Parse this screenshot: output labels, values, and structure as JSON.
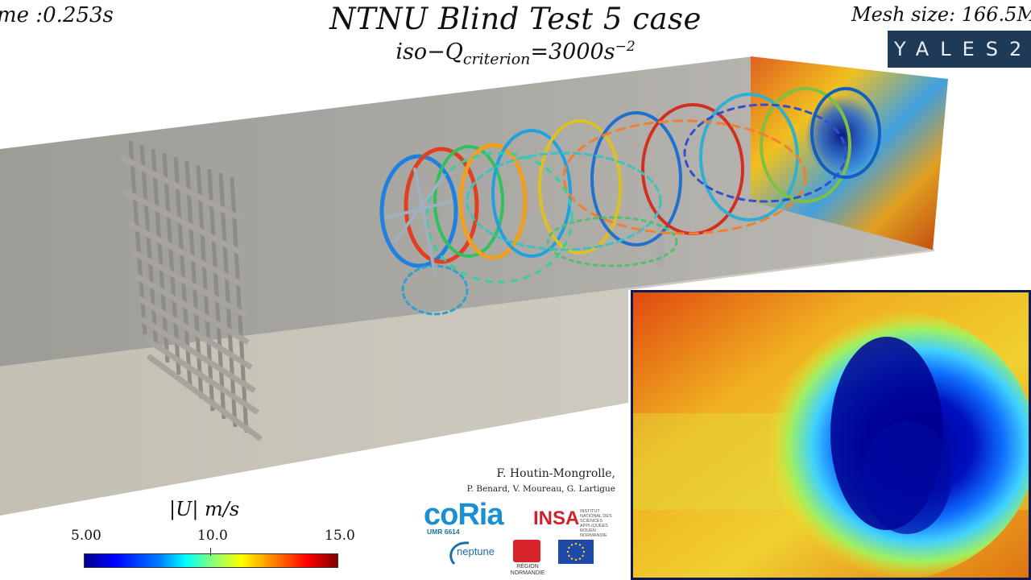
{
  "header": {
    "time_label": "me :0.253s",
    "title": "NTNU Blind Test 5 case",
    "subtitle_prefix": "iso−Q",
    "subtitle_sub": "criterion",
    "subtitle_mid": "=3000s",
    "subtitle_sup": "−2",
    "mesh_label": "Mesh size: 166.5M"
  },
  "logos": {
    "yales": "YALES2",
    "coria": "coRia",
    "coria_sub": "UMR 6614",
    "insa": "INSA",
    "insa_sub": "INSTITUT NATIONAL DES SCIENCES APPLIQUÉES ROUEN NORMANDIE",
    "neptune": "neptune",
    "normandie": "RÉGION NORMANDIE"
  },
  "credits": {
    "main": "F. Houtin-Mongrolle,",
    "sub": "P. Benard, V. Moureau, G. Lartigue"
  },
  "colorbar": {
    "title": "|U|   m/s",
    "min": "5.00",
    "mid": "10.0",
    "max": "15.0",
    "range": [
      5.0,
      15.0
    ],
    "colormap": "jet"
  },
  "colors": {
    "wall": "#a5a39e",
    "floor": "#c9c4b8",
    "inset_border": "#0c1b52",
    "yales_bg": "#1f3a56"
  }
}
